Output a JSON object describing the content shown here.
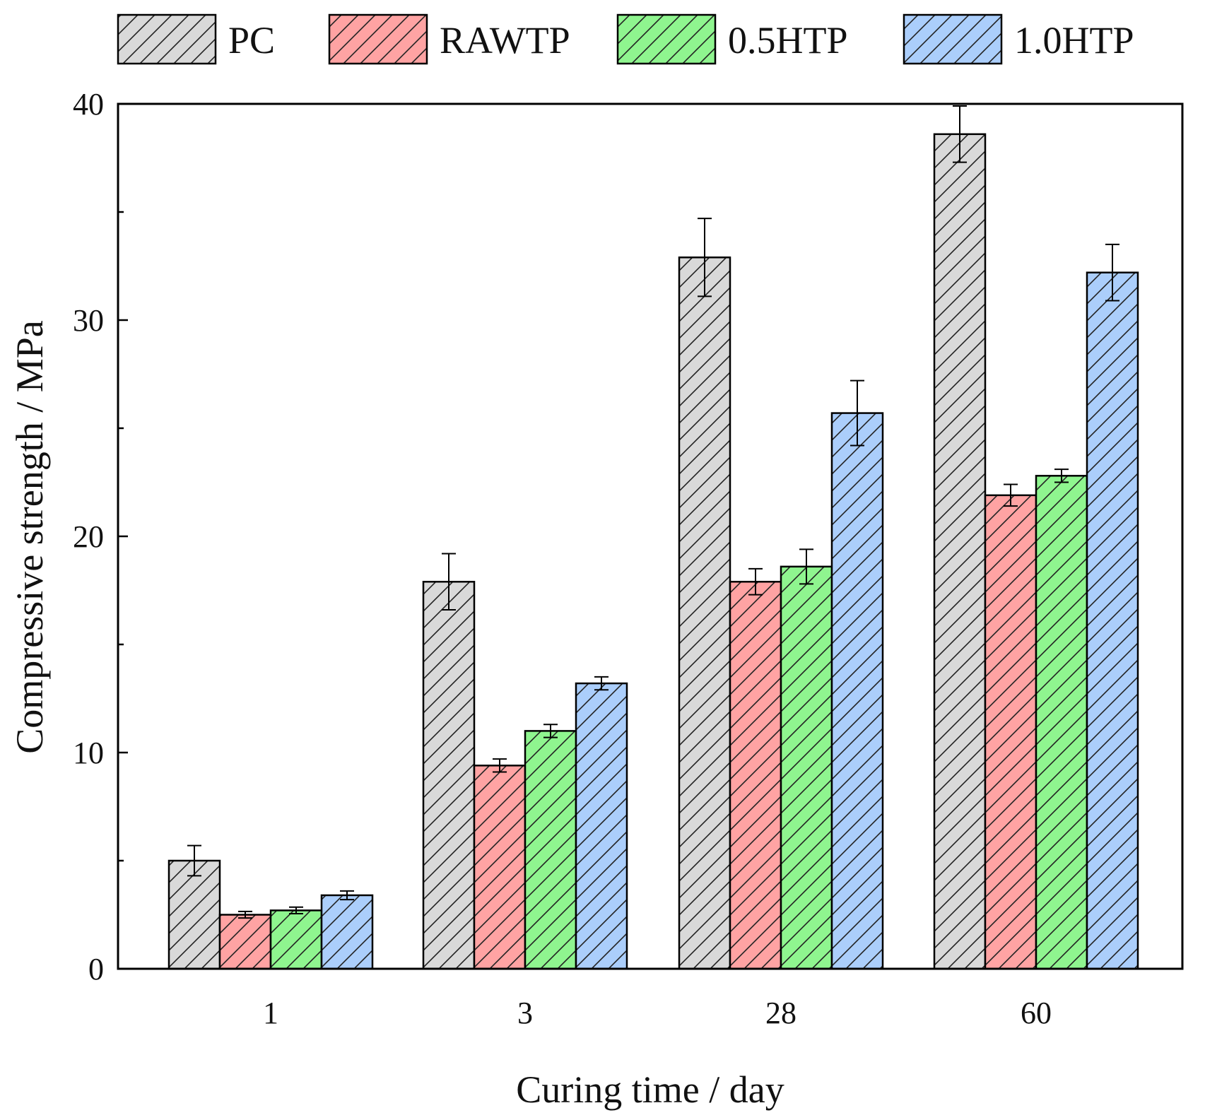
{
  "chart_data": {
    "type": "bar",
    "title": "",
    "xlabel": "Curing time / day",
    "ylabel": "Compressive strength / MPa",
    "categories": [
      "1",
      "3",
      "28",
      "60"
    ],
    "ylim": [
      0,
      40
    ],
    "yticks": [
      0,
      10,
      20,
      30,
      40
    ],
    "grid": false,
    "legend": "top, outside plot area",
    "series": [
      {
        "name": "PC",
        "color": "#d9d9d9",
        "values": [
          5.0,
          17.9,
          32.9,
          38.6
        ],
        "errors": [
          0.7,
          1.3,
          1.8,
          1.3
        ]
      },
      {
        "name": "RAWTP",
        "color": "#ffa3a3",
        "values": [
          2.5,
          9.4,
          17.9,
          21.9
        ],
        "errors": [
          0.15,
          0.3,
          0.6,
          0.5
        ]
      },
      {
        "name": "0.5HTP",
        "color": "#8ff58f",
        "values": [
          2.7,
          11.0,
          18.6,
          22.8
        ],
        "errors": [
          0.15,
          0.3,
          0.8,
          0.3
        ]
      },
      {
        "name": "1.0HTP",
        "color": "#abcefb",
        "values": [
          3.4,
          13.2,
          25.7,
          32.2
        ],
        "errors": [
          0.2,
          0.3,
          1.5,
          1.3
        ]
      }
    ]
  }
}
